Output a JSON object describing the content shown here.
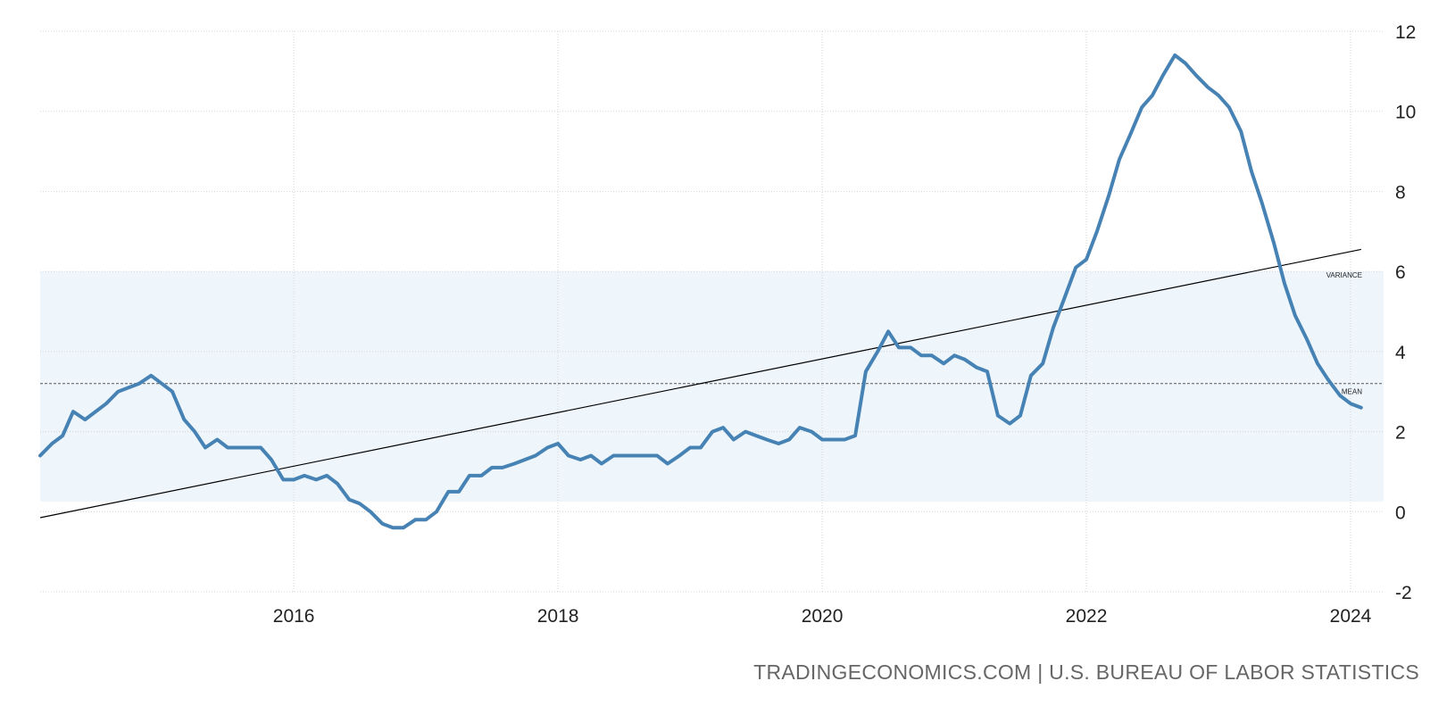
{
  "chart_data": {
    "type": "line",
    "title": "",
    "xlabel": "",
    "ylabel": "",
    "xlim": [
      2014.08,
      2024.25
    ],
    "ylim": [
      -2,
      12
    ],
    "y_ticks": [
      -2,
      0,
      2,
      4,
      6,
      8,
      10,
      12
    ],
    "x_ticks": [
      2016,
      2018,
      2020,
      2022,
      2024
    ],
    "grid": true,
    "colors": {
      "series": "#4682b4",
      "band": "#eef6fc",
      "trend": "#000000",
      "mean_line": "#555555",
      "grid": "#d4d4d4"
    },
    "band": {
      "label": "VARIANCE",
      "from": 0.25,
      "to": 6.0
    },
    "mean": {
      "label": "MEAN",
      "value": 3.2
    },
    "trend": {
      "x": [
        2014.08,
        2024.08
      ],
      "y": [
        -0.15,
        6.55
      ]
    },
    "series": [
      {
        "x": [
          2014.08,
          2014.17,
          2014.25,
          2014.33,
          2014.42,
          2014.5,
          2014.58,
          2014.67,
          2014.75,
          2014.83,
          2014.92,
          2015.0,
          2015.08,
          2015.17,
          2015.25,
          2015.33,
          2015.42,
          2015.5,
          2015.58,
          2015.67,
          2015.75,
          2015.83,
          2015.92,
          2016.0,
          2016.08,
          2016.17,
          2016.25,
          2016.33,
          2016.42,
          2016.5,
          2016.58,
          2016.67,
          2016.75,
          2016.83,
          2016.92,
          2017.0,
          2017.08,
          2017.17,
          2017.25,
          2017.33,
          2017.42,
          2017.5,
          2017.58,
          2017.67,
          2017.75,
          2017.83,
          2017.92,
          2018.0,
          2018.08,
          2018.17,
          2018.25,
          2018.33,
          2018.42,
          2018.5,
          2018.58,
          2018.67,
          2018.75,
          2018.83,
          2018.92,
          2019.0,
          2019.08,
          2019.17,
          2019.25,
          2019.33,
          2019.42,
          2019.5,
          2019.58,
          2019.67,
          2019.75,
          2019.83,
          2019.92,
          2020.0,
          2020.08,
          2020.17,
          2020.25,
          2020.33,
          2020.42,
          2020.5,
          2020.58,
          2020.67,
          2020.75,
          2020.83,
          2020.92,
          2021.0,
          2021.08,
          2021.17,
          2021.25,
          2021.33,
          2021.42,
          2021.5,
          2021.58,
          2021.67,
          2021.75,
          2021.83,
          2021.92,
          2022.0,
          2022.08,
          2022.17,
          2022.25,
          2022.33,
          2022.42,
          2022.5,
          2022.58,
          2022.67,
          2022.75,
          2022.83,
          2022.92,
          2023.0,
          2023.08,
          2023.17,
          2023.25,
          2023.33,
          2023.42,
          2023.5,
          2023.58,
          2023.67,
          2023.75,
          2023.83,
          2023.92,
          2024.0,
          2024.08
        ],
        "values": [
          1.4,
          1.7,
          1.9,
          2.5,
          2.3,
          2.5,
          2.7,
          3.0,
          3.1,
          3.2,
          3.4,
          3.2,
          3.0,
          2.3,
          2.0,
          1.6,
          1.8,
          1.6,
          1.6,
          1.6,
          1.6,
          1.3,
          0.8,
          0.8,
          0.9,
          0.8,
          0.9,
          0.7,
          0.3,
          0.2,
          0.0,
          -0.3,
          -0.4,
          -0.4,
          -0.2,
          -0.2,
          0.0,
          0.5,
          0.5,
          0.9,
          0.9,
          1.1,
          1.1,
          1.2,
          1.3,
          1.4,
          1.6,
          1.7,
          1.4,
          1.3,
          1.4,
          1.2,
          1.4,
          1.4,
          1.4,
          1.4,
          1.4,
          1.2,
          1.4,
          1.6,
          1.6,
          2.0,
          2.1,
          1.8,
          2.0,
          1.9,
          1.8,
          1.7,
          1.8,
          2.1,
          2.0,
          1.8,
          1.8,
          1.8,
          1.9,
          3.5,
          4.0,
          4.5,
          4.1,
          4.1,
          3.9,
          3.9,
          3.7,
          3.9,
          3.8,
          3.6,
          3.5,
          2.4,
          2.2,
          2.4,
          3.4,
          3.7,
          4.6,
          5.3,
          6.1,
          6.3,
          7.0,
          7.9,
          8.8,
          9.4,
          10.1,
          10.4,
          10.9,
          11.4,
          11.2,
          10.9,
          10.6,
          10.4,
          10.1,
          9.5,
          8.5,
          7.7,
          6.7,
          5.7,
          4.9,
          4.3,
          3.7,
          3.3,
          2.9,
          2.7,
          2.6
        ]
      }
    ]
  },
  "source_text": "TRADINGECONOMICS.COM | U.S. BUREAU OF LABOR STATISTICS"
}
